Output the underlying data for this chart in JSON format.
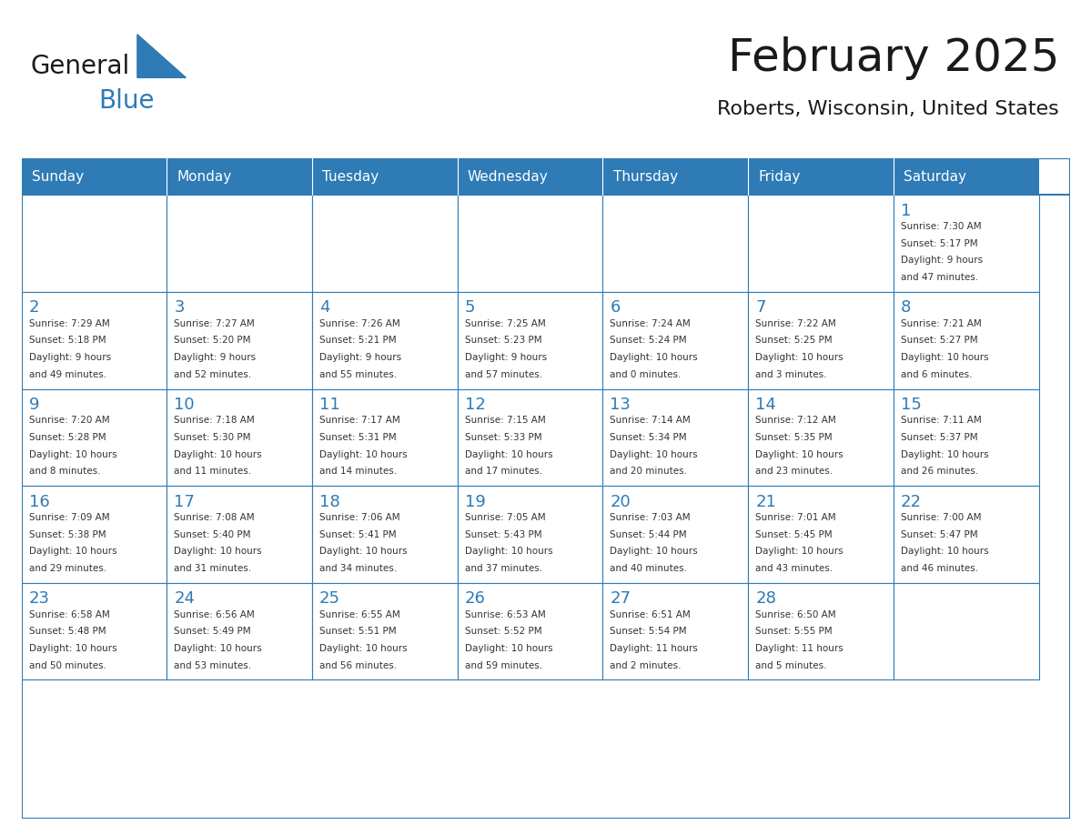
{
  "title": "February 2025",
  "subtitle": "Roberts, Wisconsin, United States",
  "header_color": "#2e7bb5",
  "header_text_color": "#ffffff",
  "cell_border_color": "#2e7bb5",
  "day_number_color": "#2e7bb5",
  "text_color": "#333333",
  "days_of_week": [
    "Sunday",
    "Monday",
    "Tuesday",
    "Wednesday",
    "Thursday",
    "Friday",
    "Saturday"
  ],
  "weeks": [
    [
      {
        "day": "",
        "info": ""
      },
      {
        "day": "",
        "info": ""
      },
      {
        "day": "",
        "info": ""
      },
      {
        "day": "",
        "info": ""
      },
      {
        "day": "",
        "info": ""
      },
      {
        "day": "",
        "info": ""
      },
      {
        "day": "1",
        "info": "Sunrise: 7:30 AM\nSunset: 5:17 PM\nDaylight: 9 hours\nand 47 minutes."
      }
    ],
    [
      {
        "day": "2",
        "info": "Sunrise: 7:29 AM\nSunset: 5:18 PM\nDaylight: 9 hours\nand 49 minutes."
      },
      {
        "day": "3",
        "info": "Sunrise: 7:27 AM\nSunset: 5:20 PM\nDaylight: 9 hours\nand 52 minutes."
      },
      {
        "day": "4",
        "info": "Sunrise: 7:26 AM\nSunset: 5:21 PM\nDaylight: 9 hours\nand 55 minutes."
      },
      {
        "day": "5",
        "info": "Sunrise: 7:25 AM\nSunset: 5:23 PM\nDaylight: 9 hours\nand 57 minutes."
      },
      {
        "day": "6",
        "info": "Sunrise: 7:24 AM\nSunset: 5:24 PM\nDaylight: 10 hours\nand 0 minutes."
      },
      {
        "day": "7",
        "info": "Sunrise: 7:22 AM\nSunset: 5:25 PM\nDaylight: 10 hours\nand 3 minutes."
      },
      {
        "day": "8",
        "info": "Sunrise: 7:21 AM\nSunset: 5:27 PM\nDaylight: 10 hours\nand 6 minutes."
      }
    ],
    [
      {
        "day": "9",
        "info": "Sunrise: 7:20 AM\nSunset: 5:28 PM\nDaylight: 10 hours\nand 8 minutes."
      },
      {
        "day": "10",
        "info": "Sunrise: 7:18 AM\nSunset: 5:30 PM\nDaylight: 10 hours\nand 11 minutes."
      },
      {
        "day": "11",
        "info": "Sunrise: 7:17 AM\nSunset: 5:31 PM\nDaylight: 10 hours\nand 14 minutes."
      },
      {
        "day": "12",
        "info": "Sunrise: 7:15 AM\nSunset: 5:33 PM\nDaylight: 10 hours\nand 17 minutes."
      },
      {
        "day": "13",
        "info": "Sunrise: 7:14 AM\nSunset: 5:34 PM\nDaylight: 10 hours\nand 20 minutes."
      },
      {
        "day": "14",
        "info": "Sunrise: 7:12 AM\nSunset: 5:35 PM\nDaylight: 10 hours\nand 23 minutes."
      },
      {
        "day": "15",
        "info": "Sunrise: 7:11 AM\nSunset: 5:37 PM\nDaylight: 10 hours\nand 26 minutes."
      }
    ],
    [
      {
        "day": "16",
        "info": "Sunrise: 7:09 AM\nSunset: 5:38 PM\nDaylight: 10 hours\nand 29 minutes."
      },
      {
        "day": "17",
        "info": "Sunrise: 7:08 AM\nSunset: 5:40 PM\nDaylight: 10 hours\nand 31 minutes."
      },
      {
        "day": "18",
        "info": "Sunrise: 7:06 AM\nSunset: 5:41 PM\nDaylight: 10 hours\nand 34 minutes."
      },
      {
        "day": "19",
        "info": "Sunrise: 7:05 AM\nSunset: 5:43 PM\nDaylight: 10 hours\nand 37 minutes."
      },
      {
        "day": "20",
        "info": "Sunrise: 7:03 AM\nSunset: 5:44 PM\nDaylight: 10 hours\nand 40 minutes."
      },
      {
        "day": "21",
        "info": "Sunrise: 7:01 AM\nSunset: 5:45 PM\nDaylight: 10 hours\nand 43 minutes."
      },
      {
        "day": "22",
        "info": "Sunrise: 7:00 AM\nSunset: 5:47 PM\nDaylight: 10 hours\nand 46 minutes."
      }
    ],
    [
      {
        "day": "23",
        "info": "Sunrise: 6:58 AM\nSunset: 5:48 PM\nDaylight: 10 hours\nand 50 minutes."
      },
      {
        "day": "24",
        "info": "Sunrise: 6:56 AM\nSunset: 5:49 PM\nDaylight: 10 hours\nand 53 minutes."
      },
      {
        "day": "25",
        "info": "Sunrise: 6:55 AM\nSunset: 5:51 PM\nDaylight: 10 hours\nand 56 minutes."
      },
      {
        "day": "26",
        "info": "Sunrise: 6:53 AM\nSunset: 5:52 PM\nDaylight: 10 hours\nand 59 minutes."
      },
      {
        "day": "27",
        "info": "Sunrise: 6:51 AM\nSunset: 5:54 PM\nDaylight: 11 hours\nand 2 minutes."
      },
      {
        "day": "28",
        "info": "Sunrise: 6:50 AM\nSunset: 5:55 PM\nDaylight: 11 hours\nand 5 minutes."
      },
      {
        "day": "",
        "info": ""
      }
    ]
  ],
  "logo_text_general": "General",
  "logo_text_blue": "Blue",
  "logo_color_general": "#1a1a1a",
  "logo_color_blue": "#2e7bb5",
  "logo_triangle_color": "#2e7bb5"
}
